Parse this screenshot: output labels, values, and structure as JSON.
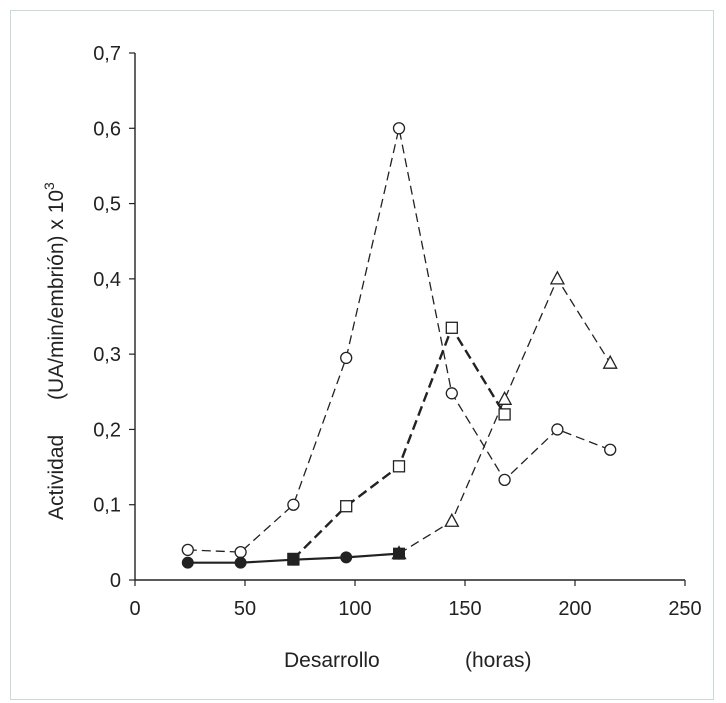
{
  "chart_data": {
    "type": "line",
    "title": "",
    "xlabel": "Desarrollo",
    "xlabel_unit": "(horas)",
    "ylabel": "Actividad",
    "ylabel_unit_base": "(UA/min/embrión) x 10",
    "ylabel_unit_exp": "3",
    "xlim": [
      0,
      250
    ],
    "ylim": [
      0,
      0.7
    ],
    "xticks": [
      0,
      50,
      100,
      150,
      200,
      250
    ],
    "yticks": [
      0,
      0.1,
      0.2,
      0.3,
      0.4,
      0.5,
      0.6,
      0.7
    ],
    "xtick_labels": [
      "0",
      "50",
      "100",
      "150",
      "200",
      "250"
    ],
    "ytick_labels": [
      "0",
      "0,1",
      "0,2",
      "0,3",
      "0,4",
      "0,5",
      "0,6",
      "0,7"
    ],
    "grid": false,
    "series": [
      {
        "marker": "circle-open",
        "style": "thin-dashed",
        "x": [
          24,
          48,
          72,
          96,
          120,
          144,
          168,
          192,
          216
        ],
        "y": [
          0.04,
          0.037,
          0.1,
          0.295,
          0.6,
          0.248,
          0.133,
          0.2,
          0.173
        ]
      },
      {
        "marker": "square-open",
        "style": "thick-dashed",
        "x": [
          72,
          96,
          120,
          144,
          168
        ],
        "y": [
          0.028,
          0.098,
          0.151,
          0.335,
          0.22
        ]
      },
      {
        "marker": "triangle-open",
        "style": "thin-dashed",
        "x": [
          120,
          144,
          168,
          192,
          216
        ],
        "y": [
          0.035,
          0.078,
          0.24,
          0.4,
          0.288
        ]
      },
      {
        "marker": "circle-filled",
        "style": "solid",
        "x": [
          24,
          48,
          72,
          96,
          120
        ],
        "y": [
          0.023,
          0.023,
          0.027,
          0.03,
          0.035
        ]
      },
      {
        "marker": "square-filled",
        "style": "none",
        "x": [
          72,
          120
        ],
        "y": [
          0.027,
          0.035
        ]
      }
    ]
  }
}
